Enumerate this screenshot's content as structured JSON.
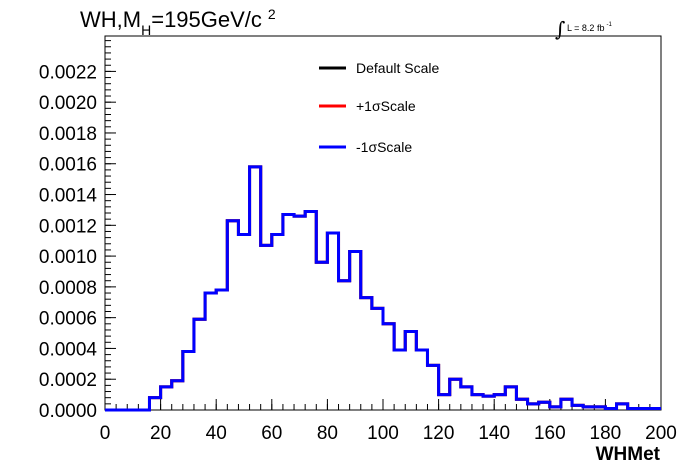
{
  "chart_data": {
    "type": "histogram",
    "title": {
      "prefix": "WH,M",
      "subscript": "H",
      "suffix": "=195GeV/c",
      "superscript": "2"
    },
    "luminosity": {
      "symbol": "∫",
      "text": "L = 8.2 fb",
      "superscript": "-1"
    },
    "xlabel": "WHMet",
    "ylabel": "",
    "xlim": [
      0,
      200
    ],
    "ylim": [
      0,
      0.00243
    ],
    "bin_width": 4,
    "x_ticks": [
      "0",
      "20",
      "40",
      "60",
      "80",
      "100",
      "120",
      "140",
      "160",
      "180",
      "200"
    ],
    "y_ticks": [
      "0.0000",
      "0.0002",
      "0.0004",
      "0.0006",
      "0.0008",
      "0.0010",
      "0.0012",
      "0.0014",
      "0.0016",
      "0.0018",
      "0.0020",
      "0.0022"
    ],
    "legend_position": "top-center",
    "series": [
      {
        "name": "Default Scale",
        "color": "#000000",
        "values": [
          0,
          0,
          0,
          0,
          8e-05,
          0.00015,
          0.00019,
          0.00038,
          0.00059,
          0.00076,
          0.00078,
          0.00123,
          0.00114,
          0.00158,
          0.00107,
          0.00114,
          0.00127,
          0.00126,
          0.00129,
          0.00096,
          0.00115,
          0.00084,
          0.00103,
          0.00073,
          0.00066,
          0.00056,
          0.00039,
          0.00051,
          0.00039,
          0.00029,
          0.0001,
          0.0002,
          0.00015,
          0.0001,
          9e-05,
          0.0001,
          0.00015,
          7e-05,
          4e-05,
          5e-05,
          2e-05,
          7e-05,
          3e-05,
          2e-05,
          2e-05,
          1e-05,
          4e-05,
          1e-05,
          1e-05,
          1e-05
        ]
      },
      {
        "name": "+1σScale",
        "color": "#ff0000",
        "values": [
          0,
          0,
          0,
          0,
          8e-05,
          0.00015,
          0.00019,
          0.00038,
          0.00059,
          0.00076,
          0.00078,
          0.00123,
          0.00114,
          0.00158,
          0.00107,
          0.00114,
          0.00127,
          0.00126,
          0.00129,
          0.00096,
          0.00115,
          0.00084,
          0.00103,
          0.00073,
          0.00066,
          0.00056,
          0.00039,
          0.00051,
          0.00039,
          0.00029,
          0.0001,
          0.0002,
          0.00015,
          0.0001,
          9e-05,
          0.0001,
          0.00015,
          7e-05,
          4e-05,
          5e-05,
          2e-05,
          7e-05,
          3e-05,
          2e-05,
          2e-05,
          1e-05,
          4e-05,
          1e-05,
          1e-05,
          1e-05
        ]
      },
      {
        "name": "-1σScale",
        "color": "#0000ff",
        "values": [
          0,
          0,
          0,
          0,
          8e-05,
          0.00015,
          0.00019,
          0.00038,
          0.00059,
          0.00076,
          0.00078,
          0.00123,
          0.00114,
          0.00158,
          0.00107,
          0.00114,
          0.00127,
          0.00126,
          0.00129,
          0.00096,
          0.00115,
          0.00084,
          0.00103,
          0.00073,
          0.00066,
          0.00056,
          0.00039,
          0.00051,
          0.00039,
          0.00029,
          0.0001,
          0.0002,
          0.00015,
          0.0001,
          9e-05,
          0.0001,
          0.00015,
          7e-05,
          4e-05,
          5e-05,
          2e-05,
          7e-05,
          3e-05,
          2e-05,
          2e-05,
          1e-05,
          4e-05,
          1e-05,
          1e-05,
          1e-05
        ]
      }
    ]
  }
}
